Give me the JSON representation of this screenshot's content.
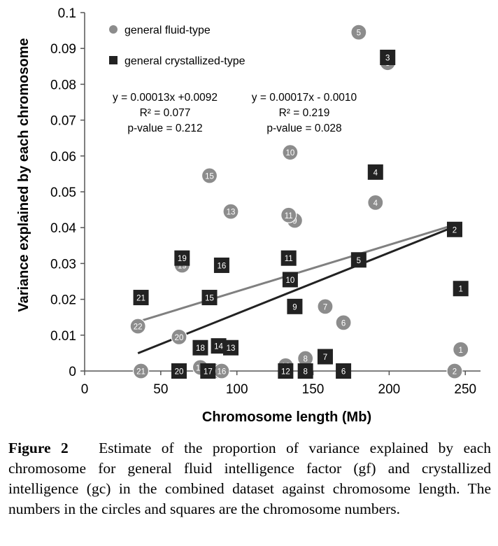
{
  "chart_data": {
    "type": "scatter",
    "xlabel": "Chromosome length (Mb)",
    "ylabel": "Variance explained by each chromosome",
    "xlim": [
      0,
      260
    ],
    "ylim": [
      0,
      0.1
    ],
    "xticks": [
      0,
      50,
      100,
      150,
      200,
      250
    ],
    "yticks": [
      0,
      0.01,
      0.02,
      0.03,
      0.04,
      0.05,
      0.06,
      0.07,
      0.08,
      0.09,
      0.1
    ],
    "xtick_labels": [
      "0",
      "50",
      "100",
      "150",
      "200",
      "250"
    ],
    "ytick_labels": [
      "0",
      "0.01",
      "0.02",
      "0.03",
      "0.04",
      "0.05",
      "0.06",
      "0.07",
      "0.08",
      "0.09",
      "0.1"
    ],
    "grid": false,
    "legend_position": "top-left",
    "series": [
      {
        "name": "general fluid-type",
        "marker": "circle",
        "color": "#8c8c8c",
        "points": [
          {
            "label": "1",
            "x": 247,
            "y": 0.006
          },
          {
            "label": "2",
            "x": 243,
            "y": 0.0
          },
          {
            "label": "3",
            "x": 199,
            "y": 0.086
          },
          {
            "label": "4",
            "x": 191,
            "y": 0.047
          },
          {
            "label": "5",
            "x": 180,
            "y": 0.0945
          },
          {
            "label": "6",
            "x": 170,
            "y": 0.0135
          },
          {
            "label": "7",
            "x": 158,
            "y": 0.018
          },
          {
            "label": "8",
            "x": 145,
            "y": 0.0035
          },
          {
            "label": "9",
            "x": 138,
            "y": 0.042
          },
          {
            "label": "10",
            "x": 135,
            "y": 0.061
          },
          {
            "label": "11",
            "x": 134,
            "y": 0.0435
          },
          {
            "label": "12",
            "x": 132,
            "y": 0.0015
          },
          {
            "label": "13",
            "x": 96,
            "y": 0.0445
          },
          {
            "label": "14",
            "x": 88,
            "y": 0.0
          },
          {
            "label": "15",
            "x": 82,
            "y": 0.0545
          },
          {
            "label": "16",
            "x": 90,
            "y": 0.0
          },
          {
            "label": "17",
            "x": 81,
            "y": 0.0
          },
          {
            "label": "18",
            "x": 76,
            "y": 0.001
          },
          {
            "label": "19",
            "x": 64,
            "y": 0.0295
          },
          {
            "label": "20",
            "x": 62,
            "y": 0.0095
          },
          {
            "label": "21",
            "x": 37,
            "y": 0.0
          },
          {
            "label": "22",
            "x": 35,
            "y": 0.0125
          }
        ]
      },
      {
        "name": "general crystallized-type",
        "marker": "square",
        "color": "#222222",
        "points": [
          {
            "label": "1",
            "x": 247,
            "y": 0.023
          },
          {
            "label": "2",
            "x": 243,
            "y": 0.0395
          },
          {
            "label": "3",
            "x": 199,
            "y": 0.0875
          },
          {
            "label": "4",
            "x": 191,
            "y": 0.0555
          },
          {
            "label": "5",
            "x": 180,
            "y": 0.031
          },
          {
            "label": "6",
            "x": 170,
            "y": 0.0
          },
          {
            "label": "7",
            "x": 158,
            "y": 0.004
          },
          {
            "label": "8",
            "x": 145,
            "y": 0.0
          },
          {
            "label": "9",
            "x": 138,
            "y": 0.018
          },
          {
            "label": "10",
            "x": 135,
            "y": 0.0255
          },
          {
            "label": "11",
            "x": 134,
            "y": 0.0315
          },
          {
            "label": "12",
            "x": 132,
            "y": 0.0
          },
          {
            "label": "13",
            "x": 96,
            "y": 0.0065
          },
          {
            "label": "14",
            "x": 88,
            "y": 0.007
          },
          {
            "label": "15",
            "x": 82,
            "y": 0.0205
          },
          {
            "label": "16",
            "x": 90,
            "y": 0.0295
          },
          {
            "label": "17",
            "x": 81,
            "y": 0.0
          },
          {
            "label": "18",
            "x": 76,
            "y": 0.0065
          },
          {
            "label": "19",
            "x": 64,
            "y": 0.0315
          },
          {
            "label": "20",
            "x": 62,
            "y": 0.0
          },
          {
            "label": "21",
            "x": 37,
            "y": 0.0205
          }
        ]
      }
    ],
    "trend_lines": [
      {
        "series": "general fluid-type",
        "color": "#808080",
        "slope": 0.00013,
        "intercept": 0.0092,
        "x_range": [
          35,
          247
        ]
      },
      {
        "series": "general crystallized-type",
        "color": "#222222",
        "slope": 0.00017,
        "intercept": -0.001,
        "x_range": [
          35,
          247
        ]
      }
    ],
    "annotations": [
      {
        "id": "fluid",
        "lines": [
          "y = 0.00013x +0.0092",
          "R² = 0.077",
          "p-value = 0.212"
        ]
      },
      {
        "id": "cryst",
        "lines": [
          "y = 0.00017x - 0.0010",
          "R² = 0.219",
          "p-value = 0.028"
        ]
      }
    ]
  },
  "caption": {
    "label": "Figure 2",
    "text": "Estimate of the proportion of variance explained by each chromosome for general fluid intelligence factor (gf) and crystallized intelligence (gc) in the combined dataset against chromosome length. The numbers in the circles and squares are the chromosome numbers."
  }
}
